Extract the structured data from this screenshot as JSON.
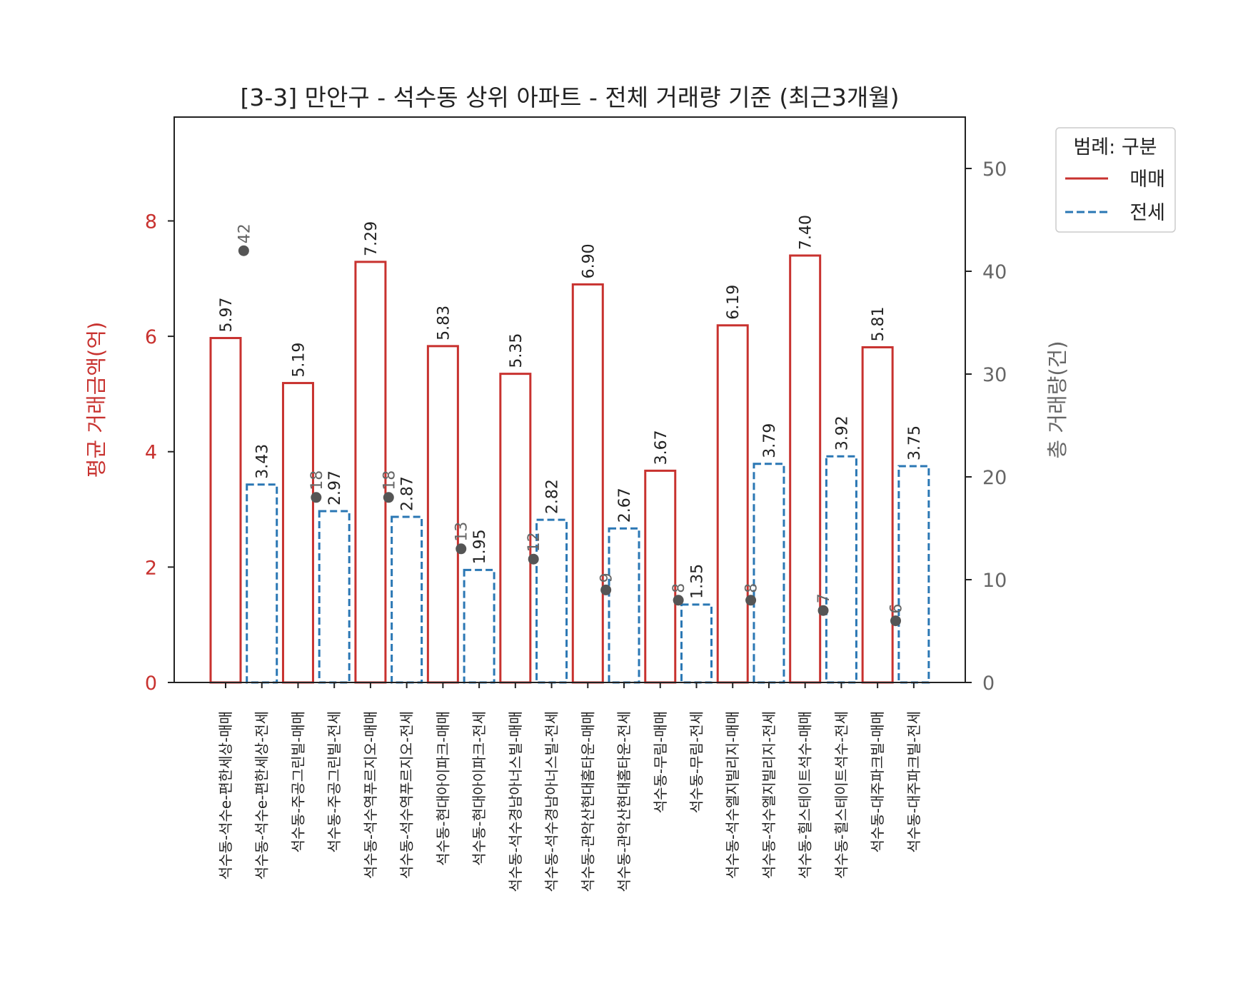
{
  "chart_data": {
    "type": "bar",
    "title": "[3-3] 만안구 - 석수동 상위 아파트 - 전체 거래량 기준 (최근3개월)",
    "ylabel_left": "평균 거래금액(억)",
    "ylabel_right": "총 거래량(건)",
    "ylim_left": [
      0,
      9.8
    ],
    "ylim_right": [
      0,
      55
    ],
    "yticks_left": [
      "0",
      "2",
      "4",
      "6",
      "8"
    ],
    "yticks_right": [
      "0",
      "10",
      "20",
      "30",
      "40",
      "50"
    ],
    "legend": {
      "title": "범례: 구분",
      "placement": "outside-top-right",
      "items": [
        {
          "label": "매매",
          "color": "#c8322f",
          "style": "solid"
        },
        {
          "label": "전세",
          "color": "#2a77b4",
          "style": "dashed"
        }
      ]
    },
    "categories": [
      "석수동-석수e-편한세상-매매",
      "석수동-석수e-편한세상-전세",
      "석수동-주공그린빌-매매",
      "석수동-주공그린빌-전세",
      "석수동-석수역푸르지오-매매",
      "석수동-석수역푸르지오-전세",
      "석수동-현대아이파크-매매",
      "석수동-현대아이파크-전세",
      "석수동-석수경남아너스빌-매매",
      "석수동-석수경남아너스빌-전세",
      "석수동-관악산현대홈타운-매매",
      "석수동-관악산현대홈타운-전세",
      "석수동-무림-매매",
      "석수동-무림-전세",
      "석수동-석수엘지빌리지-매매",
      "석수동-석수엘지빌리지-전세",
      "석수동-힐스테이트석수-매매",
      "석수동-힐스테이트석수-전세",
      "석수동-대주파크빌-매매",
      "석수동-대주파크빌-전세"
    ],
    "bar_types": [
      "매매",
      "전세",
      "매매",
      "전세",
      "매매",
      "전세",
      "매매",
      "전세",
      "매매",
      "전세",
      "매매",
      "전세",
      "매매",
      "전세",
      "매매",
      "전세",
      "매매",
      "전세",
      "매매",
      "전세"
    ],
    "avg_price": [
      5.97,
      3.43,
      5.19,
      2.97,
      7.29,
      2.87,
      5.83,
      1.95,
      5.35,
      2.82,
      6.9,
      2.67,
      3.67,
      1.35,
      6.19,
      3.79,
      7.4,
      3.92,
      5.81,
      3.75
    ],
    "avg_price_labels": [
      "5.97",
      "3.43",
      "5.19",
      "2.97",
      "7.29",
      "2.87",
      "5.83",
      "1.95",
      "5.35",
      "2.82",
      "6.90",
      "2.67",
      "3.67",
      "1.35",
      "6.19",
      "3.79",
      "7.40",
      "3.92",
      "5.81",
      "3.75"
    ],
    "total_volume": [
      42,
      18,
      18,
      13,
      12,
      9,
      8,
      8,
      7,
      6
    ],
    "total_volume_labels": [
      "42",
      "18",
      "18",
      "13",
      "12",
      "9",
      "8",
      "8",
      "7",
      "6"
    ]
  }
}
